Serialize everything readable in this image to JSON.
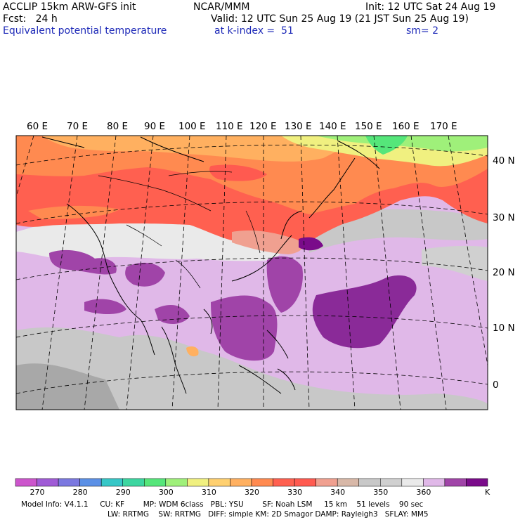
{
  "header": {
    "model_line": "ACCLIP 15km ARW-GFS init",
    "org": "NCAR/MMM",
    "init": "Init: 12 UTC Sat 24 Aug 19",
    "fcst": "Fcst:   24 h",
    "valid": "Valid: 12 UTC Sun 25 Aug 19 (21 JST Sun 25 Aug 19)",
    "field": "Equivalent potential temperature",
    "level": "at k-index =  51",
    "smooth": "sm= 2"
  },
  "map": {
    "lon_labels": [
      "60 E",
      "70 E",
      "80 E",
      "90 E",
      "100 E",
      "110 E",
      "120 E",
      "130 E",
      "140 E",
      "150 E",
      "160 E",
      "170 E"
    ],
    "lat_labels": [
      "40 N",
      "30 N",
      "20 N",
      "10 N",
      "0"
    ]
  },
  "colorbar": {
    "colors": [
      "#cc55cc",
      "#a05bd6",
      "#7b78e0",
      "#5b90e6",
      "#36c7c7",
      "#3cd6a0",
      "#55e67a",
      "#9ff07a",
      "#f0f080",
      "#ffd070",
      "#ffb060",
      "#ff8a50",
      "#ff6050",
      "#ff5a50",
      "#f0a090",
      "#d8b8a8",
      "#c8c8c8",
      "#d0d0d0",
      "#eaeaea",
      "#e0b8e8",
      "#a044a8",
      "#7a0b8a"
    ],
    "labels": [
      "270",
      "280",
      "290",
      "300",
      "310",
      "320",
      "330",
      "340",
      "350",
      "360"
    ],
    "unit": "K"
  },
  "footer": {
    "line1": "Model Info: V4.1.1     CU: KF        MP: WDM 6class   PBL: YSU        SF: Noah LSM     15 km    51 levels    90 sec",
    "line2": "LW: RRTMG    SW: RRTMG   DIFF: simple KM: 2D Smagor DAMP: Rayleigh3   SFLAY: MM5"
  }
}
